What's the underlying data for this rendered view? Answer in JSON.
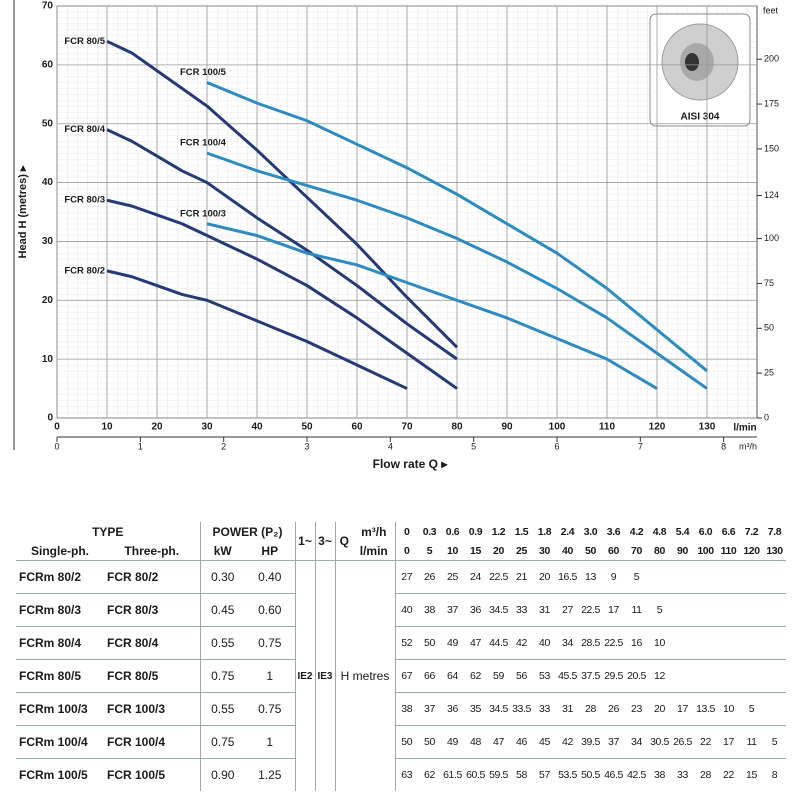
{
  "chart_data": {
    "type": "line",
    "y_label": "Head H (metres) ▸",
    "x_label": "Flow rate Q ▸",
    "x_unit": "l/min",
    "x2_unit": "m³/h",
    "y2_unit": "feet",
    "inset_label": "AISI 304",
    "xlim": [
      0,
      140
    ],
    "xticks": [
      0,
      10,
      20,
      30,
      40,
      50,
      60,
      70,
      80,
      90,
      100,
      110,
      120,
      130
    ],
    "x2lim": [
      0,
      8.4
    ],
    "x2ticks": [
      0,
      1,
      2,
      3,
      4,
      5,
      6,
      7,
      8
    ],
    "ylim": [
      0,
      70
    ],
    "yticks": [
      0,
      10,
      20,
      30,
      40,
      50,
      60,
      70
    ],
    "y2lim": [
      0,
      229.66
    ],
    "y2ticks": [
      0,
      25,
      50,
      75,
      100,
      124,
      150,
      175,
      200
    ],
    "series": [
      {
        "name": "FCR 80/2",
        "color": "#243a78",
        "x": [
          10,
          15,
          20,
          25,
          30,
          40,
          50,
          60,
          70
        ],
        "values": [
          25,
          24,
          22.5,
          21,
          20,
          16.5,
          13,
          9,
          5
        ]
      },
      {
        "name": "FCR 80/3",
        "color": "#243a78",
        "x": [
          10,
          15,
          20,
          25,
          30,
          40,
          50,
          60,
          70,
          80
        ],
        "values": [
          37,
          36,
          34.5,
          33,
          31,
          27,
          22.5,
          17,
          11,
          5
        ]
      },
      {
        "name": "FCR 80/4",
        "color": "#243a78",
        "x": [
          10,
          15,
          20,
          25,
          30,
          40,
          50,
          60,
          70,
          80
        ],
        "values": [
          49,
          47,
          44.5,
          42,
          40,
          34,
          28.5,
          22.5,
          16,
          10
        ]
      },
      {
        "name": "FCR 80/5",
        "color": "#243a78",
        "x": [
          10,
          15,
          20,
          25,
          30,
          40,
          50,
          60,
          70,
          80
        ],
        "values": [
          64,
          62,
          59,
          56,
          53,
          45.5,
          37.5,
          29.5,
          20.5,
          12
        ]
      },
      {
        "name": "FCR 100/3",
        "color": "#2b8cc4",
        "x": [
          30,
          40,
          50,
          60,
          70,
          80,
          90,
          100,
          110,
          120
        ],
        "values": [
          33,
          31,
          28,
          26,
          23,
          20,
          17,
          13.5,
          10,
          5
        ]
      },
      {
        "name": "FCR 100/4",
        "color": "#2b8cc4",
        "x": [
          30,
          40,
          50,
          60,
          70,
          80,
          90,
          100,
          110,
          120,
          130
        ],
        "values": [
          45,
          42,
          39.5,
          37,
          34,
          30.5,
          26.5,
          22,
          17,
          11,
          5
        ]
      },
      {
        "name": "FCR 100/5",
        "color": "#2b8cc4",
        "x": [
          30,
          40,
          50,
          60,
          70,
          80,
          90,
          100,
          110,
          120,
          130
        ],
        "values": [
          57,
          53.5,
          50.5,
          46.5,
          42.5,
          38,
          33,
          28,
          22,
          15,
          8
        ]
      }
    ]
  },
  "table": {
    "type_header": "TYPE",
    "power_header": "POWER (P₂)",
    "phase_headers": [
      "1~",
      "3~"
    ],
    "q_header": "Q",
    "flow_units": [
      "m³/h",
      "l/min"
    ],
    "columns": [
      "Single-ph.",
      "Three-ph.",
      "kW",
      "HP"
    ],
    "flow_m3h": [
      "0",
      "0.3",
      "0.6",
      "0.9",
      "1.2",
      "1.5",
      "1.8",
      "2.4",
      "3.0",
      "3.6",
      "4.2",
      "4.8",
      "5.4",
      "6.0",
      "6.6",
      "7.2",
      "7.8"
    ],
    "flow_lmin": [
      0,
      5,
      10,
      15,
      20,
      25,
      30,
      40,
      50,
      60,
      70,
      80,
      90,
      100,
      110,
      120,
      130
    ],
    "efficiency": [
      "IE2",
      "IE3"
    ],
    "head_label": "H metres",
    "rows": [
      {
        "single": "FCRm 80/2",
        "three": "FCR 80/2",
        "kw": "0.30",
        "hp": "0.40",
        "head": [
          27,
          26,
          25,
          24,
          22.5,
          21,
          20,
          16.5,
          13,
          9,
          5
        ]
      },
      {
        "single": "FCRm 80/3",
        "three": "FCR 80/3",
        "kw": "0.45",
        "hp": "0.60",
        "head": [
          40,
          38,
          37,
          36,
          34.5,
          33,
          31,
          27,
          22.5,
          17,
          11,
          5
        ]
      },
      {
        "single": "FCRm 80/4",
        "three": "FCR 80/4",
        "kw": "0.55",
        "hp": "0.75",
        "head": [
          52,
          50,
          49,
          47,
          44.5,
          42,
          40,
          34,
          28.5,
          22.5,
          16,
          10
        ]
      },
      {
        "single": "FCRm 80/5",
        "three": "FCR 80/5",
        "kw": "0.75",
        "hp": "1",
        "head": [
          67,
          66,
          64,
          62,
          59,
          56,
          53,
          45.5,
          37.5,
          29.5,
          20.5,
          12
        ]
      },
      {
        "single": "FCRm 100/3",
        "three": "FCR 100/3",
        "kw": "0.55",
        "hp": "0.75",
        "head": [
          38,
          37,
          36,
          35,
          34.5,
          33.5,
          33,
          31,
          28,
          26,
          23,
          20,
          17,
          13.5,
          10,
          5
        ]
      },
      {
        "single": "FCRm 100/4",
        "three": "FCR 100/4",
        "kw": "0.75",
        "hp": "1",
        "head": [
          50,
          50,
          49,
          48,
          47,
          46,
          45,
          42,
          39.5,
          37,
          34,
          30.5,
          26.5,
          22,
          17,
          11,
          5
        ]
      },
      {
        "single": "FCRm 100/5",
        "three": "FCR 100/5",
        "kw": "0.90",
        "hp": "1.25",
        "head": [
          63,
          62,
          61.5,
          60.5,
          59.5,
          58,
          57,
          53.5,
          50.5,
          46.5,
          42.5,
          38,
          33,
          28,
          22,
          15,
          8
        ]
      }
    ]
  }
}
